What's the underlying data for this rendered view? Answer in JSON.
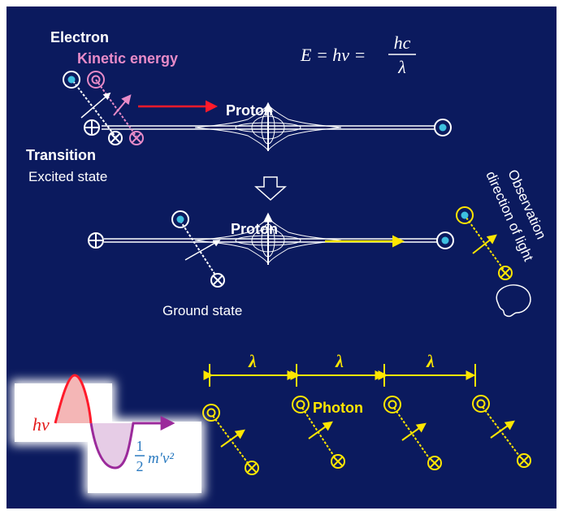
{
  "top": {
    "electron": "Electron",
    "kinetic_energy": "Kinetic energy",
    "proton": "Proton",
    "transition": "Transition",
    "excited_state": "Excited state"
  },
  "equation": {
    "lhs": "E = hν =",
    "numerator": "hc",
    "denominator": "λ"
  },
  "middle": {
    "proton": "Proton",
    "ground_state": "Ground state",
    "observation": [
      "Observation",
      "direction of light"
    ]
  },
  "bottom": {
    "wavelengths": [
      "λ",
      "λ",
      "λ"
    ],
    "photon": "Photon"
  },
  "inset": {
    "h_nu": "hν",
    "half_num": "1",
    "half_den": "2",
    "kinetic": "m′v²"
  }
}
